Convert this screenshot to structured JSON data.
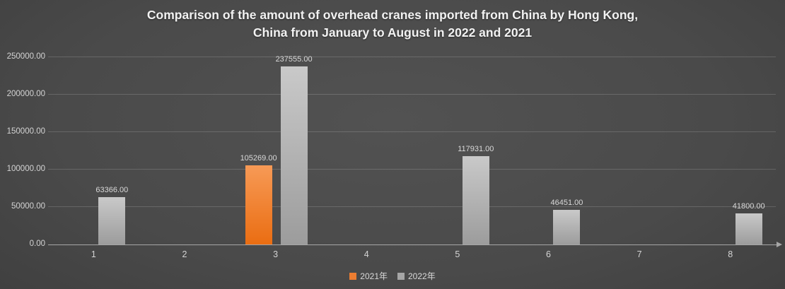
{
  "chart_data": {
    "type": "bar",
    "title": "Comparison of the amount of overhead cranes imported from China by Hong Kong, China from January to August in 2022 and 2021",
    "title_lines": [
      "Comparison of the amount of overhead cranes imported from China by Hong Kong,",
      "China from January to August in 2022 and 2021"
    ],
    "categories": [
      "1",
      "2",
      "3",
      "4",
      "5",
      "6",
      "7",
      "8"
    ],
    "series": [
      {
        "name": "2021年",
        "color": "#ed7d31",
        "gradient_top": "#f79a56",
        "gradient_bottom": "#ea6d12",
        "values": [
          null,
          null,
          105269,
          null,
          null,
          null,
          null,
          null
        ],
        "labels": [
          null,
          null,
          "105269.00",
          null,
          null,
          null,
          null,
          null
        ]
      },
      {
        "name": "2022年",
        "color": "#a6a6a6",
        "gradient_top": "#c9c9c9",
        "gradient_bottom": "#9c9c9c",
        "values": [
          63366,
          null,
          237555,
          null,
          117931,
          46451,
          null,
          41800
        ],
        "labels": [
          "63366.00",
          null,
          "237555.00",
          null,
          "117931.00",
          "46451.00",
          null,
          "41800.00"
        ]
      }
    ],
    "ylim": [
      0,
      250000
    ],
    "ytick_step": 50000,
    "yticks": [
      "0.00",
      "50000.00",
      "100000.00",
      "150000.00",
      "200000.00",
      "250000.00"
    ],
    "grid": "horizontal gridlines on",
    "legend_position": "bottom center",
    "colors": {
      "background_center": "#515151",
      "background_edge": "#282828",
      "title_text": "#f2f2f2",
      "tick_text": "#d4d4d4",
      "data_label_text": "#d9d9d9",
      "gridline": "#5f5f5f",
      "axis_line": "#a6a6a6"
    }
  }
}
